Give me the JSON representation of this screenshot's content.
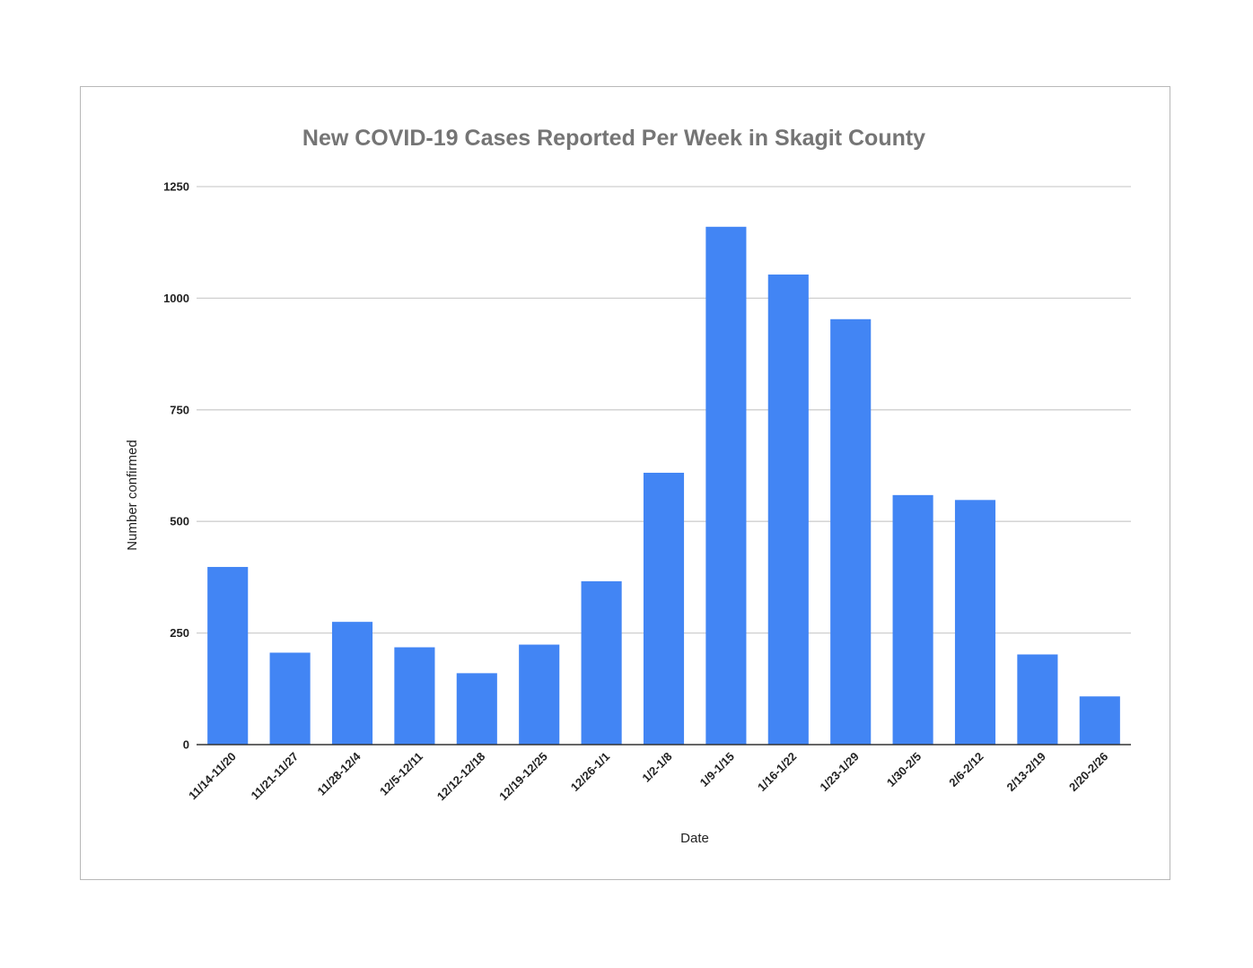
{
  "chart_data": {
    "type": "bar",
    "title": "New COVID-19 Cases Reported Per Week in Skagit County",
    "xlabel": "Date",
    "ylabel": "Number confirmed",
    "ylim": [
      0,
      1250
    ],
    "yticks": [
      "0",
      "250",
      "500",
      "750",
      "1000",
      "1250"
    ],
    "grid": true,
    "legend": "none",
    "bar_color": "#4285f4",
    "categories": [
      "11/14-11/20",
      "11/21-11/27",
      "11/28-12/4",
      "12/5-12/11",
      "12/12-12/18",
      "12/19-12/25",
      "12/26-1/1",
      "1/2-1/8",
      "1/9-1/15",
      "1/16-1/22",
      "1/23-1/29",
      "1/30-2/5",
      "2/6-2/12",
      "2/13-2/19",
      "2/20-2/26"
    ],
    "values": [
      398,
      206,
      275,
      218,
      160,
      224,
      366,
      609,
      1160,
      1053,
      953,
      559,
      548,
      202,
      108
    ]
  }
}
